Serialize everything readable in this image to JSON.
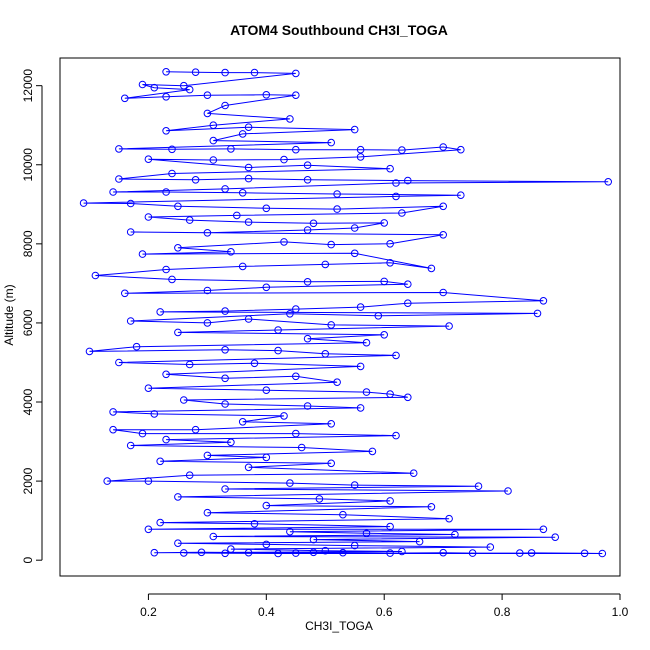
{
  "chart_data": {
    "type": "scatter",
    "title": "ATOM4 Southbound CH3I_TOGA",
    "xlabel": "CH3I_TOGA",
    "ylabel": "Altitude (m)",
    "xlim": [
      0.05,
      1.0
    ],
    "ylim": [
      -400,
      12700
    ],
    "x_ticks": [
      "0.2",
      "0.4",
      "0.6",
      "0.8",
      "1.0"
    ],
    "x_tick_values": [
      0.2,
      0.4,
      0.6,
      0.8,
      1.0
    ],
    "y_ticks": [
      "0",
      "2000",
      "4000",
      "6000",
      "8000",
      "10000",
      "12000"
    ],
    "y_tick_values": [
      0,
      2000,
      4000,
      6000,
      8000,
      10000,
      12000
    ],
    "series_color": "#0000ff",
    "marker": "open-circle",
    "connected": true,
    "grid": false,
    "series": [
      {
        "points": [
          [
            0.23,
            12350
          ],
          [
            0.28,
            12340
          ],
          [
            0.33,
            12330
          ],
          [
            0.38,
            12330
          ],
          [
            0.45,
            12310
          ],
          [
            0.26,
            12000
          ],
          [
            0.19,
            12030
          ],
          [
            0.21,
            11950
          ],
          [
            0.27,
            11900
          ],
          [
            0.16,
            11680
          ],
          [
            0.23,
            11720
          ],
          [
            0.3,
            11760
          ],
          [
            0.4,
            11770
          ],
          [
            0.45,
            11760
          ],
          [
            0.33,
            11500
          ],
          [
            0.3,
            11300
          ],
          [
            0.44,
            11160
          ],
          [
            0.31,
            11000
          ],
          [
            0.23,
            10860
          ],
          [
            0.37,
            10950
          ],
          [
            0.55,
            10890
          ],
          [
            0.36,
            10780
          ],
          [
            0.31,
            10610
          ],
          [
            0.51,
            10560
          ],
          [
            0.15,
            10400
          ],
          [
            0.24,
            10390
          ],
          [
            0.34,
            10400
          ],
          [
            0.45,
            10380
          ],
          [
            0.56,
            10380
          ],
          [
            0.63,
            10370
          ],
          [
            0.7,
            10450
          ],
          [
            0.73,
            10380
          ],
          [
            0.56,
            10200
          ],
          [
            0.43,
            10130
          ],
          [
            0.31,
            10120
          ],
          [
            0.2,
            10140
          ],
          [
            0.37,
            9930
          ],
          [
            0.47,
            9990
          ],
          [
            0.61,
            9900
          ],
          [
            0.24,
            9780
          ],
          [
            0.15,
            9640
          ],
          [
            0.28,
            9620
          ],
          [
            0.37,
            9650
          ],
          [
            0.47,
            9620
          ],
          [
            0.64,
            9600
          ],
          [
            0.98,
            9570
          ],
          [
            0.62,
            9540
          ],
          [
            0.33,
            9390
          ],
          [
            0.14,
            9310
          ],
          [
            0.23,
            9310
          ],
          [
            0.36,
            9290
          ],
          [
            0.52,
            9260
          ],
          [
            0.73,
            9230
          ],
          [
            0.62,
            9200
          ],
          [
            0.09,
            9030
          ],
          [
            0.17,
            9020
          ],
          [
            0.25,
            8950
          ],
          [
            0.4,
            8900
          ],
          [
            0.52,
            8880
          ],
          [
            0.7,
            8950
          ],
          [
            0.63,
            8780
          ],
          [
            0.35,
            8720
          ],
          [
            0.2,
            8680
          ],
          [
            0.27,
            8600
          ],
          [
            0.37,
            8550
          ],
          [
            0.48,
            8520
          ],
          [
            0.6,
            8530
          ],
          [
            0.55,
            8400
          ],
          [
            0.47,
            8350
          ],
          [
            0.3,
            8280
          ],
          [
            0.17,
            8300
          ],
          [
            0.7,
            8230
          ],
          [
            0.61,
            8000
          ],
          [
            0.51,
            7980
          ],
          [
            0.43,
            8050
          ],
          [
            0.25,
            7900
          ],
          [
            0.34,
            7800
          ],
          [
            0.19,
            7740
          ],
          [
            0.55,
            7760
          ],
          [
            0.68,
            7380
          ],
          [
            0.61,
            7520
          ],
          [
            0.5,
            7480
          ],
          [
            0.36,
            7430
          ],
          [
            0.23,
            7350
          ],
          [
            0.11,
            7200
          ],
          [
            0.24,
            7100
          ],
          [
            0.47,
            7040
          ],
          [
            0.6,
            7050
          ],
          [
            0.64,
            6980
          ],
          [
            0.4,
            6900
          ],
          [
            0.3,
            6820
          ],
          [
            0.16,
            6750
          ],
          [
            0.7,
            6770
          ],
          [
            0.87,
            6560
          ],
          [
            0.64,
            6500
          ],
          [
            0.56,
            6400
          ],
          [
            0.45,
            6350
          ],
          [
            0.33,
            6300
          ],
          [
            0.22,
            6280
          ],
          [
            0.86,
            6240
          ],
          [
            0.59,
            6180
          ],
          [
            0.44,
            6230
          ],
          [
            0.17,
            6050
          ],
          [
            0.3,
            6000
          ],
          [
            0.37,
            6100
          ],
          [
            0.51,
            5950
          ],
          [
            0.71,
            5920
          ],
          [
            0.42,
            5820
          ],
          [
            0.25,
            5760
          ],
          [
            0.6,
            5700
          ],
          [
            0.47,
            5600
          ],
          [
            0.57,
            5500
          ],
          [
            0.18,
            5400
          ],
          [
            0.1,
            5280
          ],
          [
            0.33,
            5320
          ],
          [
            0.42,
            5300
          ],
          [
            0.5,
            5220
          ],
          [
            0.62,
            5180
          ],
          [
            0.15,
            5000
          ],
          [
            0.27,
            4950
          ],
          [
            0.38,
            4980
          ],
          [
            0.56,
            4900
          ],
          [
            0.23,
            4700
          ],
          [
            0.33,
            4600
          ],
          [
            0.45,
            4650
          ],
          [
            0.52,
            4500
          ],
          [
            0.2,
            4350
          ],
          [
            0.4,
            4300
          ],
          [
            0.57,
            4250
          ],
          [
            0.61,
            4200
          ],
          [
            0.64,
            4120
          ],
          [
            0.26,
            4050
          ],
          [
            0.33,
            3950
          ],
          [
            0.47,
            3900
          ],
          [
            0.56,
            3850
          ],
          [
            0.14,
            3750
          ],
          [
            0.21,
            3700
          ],
          [
            0.43,
            3650
          ],
          [
            0.36,
            3500
          ],
          [
            0.51,
            3450
          ],
          [
            0.28,
            3300
          ],
          [
            0.14,
            3300
          ],
          [
            0.19,
            3200
          ],
          [
            0.45,
            3200
          ],
          [
            0.62,
            3150
          ],
          [
            0.23,
            3050
          ],
          [
            0.34,
            2980
          ],
          [
            0.17,
            2900
          ],
          [
            0.46,
            2850
          ],
          [
            0.58,
            2750
          ],
          [
            0.3,
            2650
          ],
          [
            0.4,
            2600
          ],
          [
            0.22,
            2500
          ],
          [
            0.51,
            2450
          ],
          [
            0.37,
            2350
          ],
          [
            0.65,
            2200
          ],
          [
            0.27,
            2150
          ],
          [
            0.13,
            2000
          ],
          [
            0.2,
            2000
          ],
          [
            0.44,
            1950
          ],
          [
            0.55,
            1900
          ],
          [
            0.76,
            1870
          ],
          [
            0.33,
            1800
          ],
          [
            0.81,
            1750
          ],
          [
            0.25,
            1600
          ],
          [
            0.49,
            1550
          ],
          [
            0.61,
            1500
          ],
          [
            0.4,
            1380
          ],
          [
            0.68,
            1350
          ],
          [
            0.3,
            1200
          ],
          [
            0.53,
            1150
          ],
          [
            0.71,
            1050
          ],
          [
            0.22,
            950
          ],
          [
            0.38,
            920
          ],
          [
            0.61,
            850
          ],
          [
            0.2,
            780
          ],
          [
            0.87,
            780
          ],
          [
            0.44,
            720
          ],
          [
            0.57,
            680
          ],
          [
            0.72,
            650
          ],
          [
            0.31,
            600
          ],
          [
            0.89,
            580
          ],
          [
            0.48,
            520
          ],
          [
            0.66,
            470
          ],
          [
            0.25,
            430
          ],
          [
            0.4,
            400
          ],
          [
            0.55,
            370
          ],
          [
            0.78,
            330
          ],
          [
            0.34,
            280
          ],
          [
            0.5,
            240
          ],
          [
            0.63,
            220
          ],
          [
            0.21,
            190
          ],
          [
            0.29,
            200
          ],
          [
            0.37,
            190
          ],
          [
            0.45,
            180
          ],
          [
            0.53,
            190
          ],
          [
            0.61,
            180
          ],
          [
            0.7,
            190
          ],
          [
            0.75,
            180
          ],
          [
            0.83,
            180
          ],
          [
            0.85,
            185
          ],
          [
            0.94,
            175
          ],
          [
            0.97,
            170
          ],
          [
            0.42,
            170
          ],
          [
            0.33,
            175
          ],
          [
            0.26,
            185
          ],
          [
            0.48,
            200
          ]
        ]
      }
    ]
  }
}
